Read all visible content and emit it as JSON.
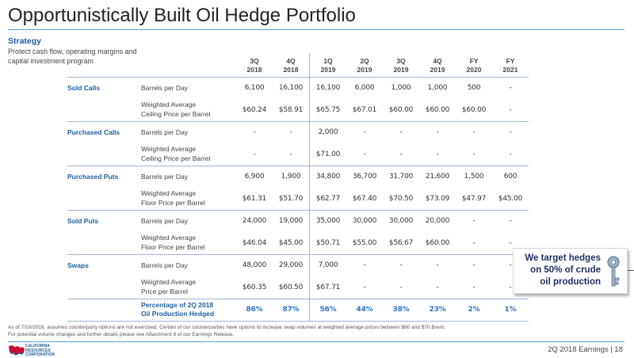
{
  "page": {
    "title": "Opportunistically Built Oil Hedge Portfolio",
    "strategy_heading": "Strategy",
    "strategy_text": "Protect cash flow, operating margins and capital investment program"
  },
  "table": {
    "columns": [
      {
        "line1": "3Q",
        "line2": "2018"
      },
      {
        "line1": "4Q",
        "line2": "2018"
      },
      {
        "line1": "1Q",
        "line2": "2019"
      },
      {
        "line1": "2Q",
        "line2": "2019"
      },
      {
        "line1": "3Q",
        "line2": "2019"
      },
      {
        "line1": "4Q",
        "line2": "2019"
      },
      {
        "line1": "FY",
        "line2": "2020"
      },
      {
        "line1": "FY",
        "line2": "2021"
      }
    ],
    "groups": [
      {
        "category": "Sold Calls",
        "rows": [
          {
            "desc": [
              "Barrels per Day"
            ],
            "values": [
              "6,100",
              "16,100",
              "16,100",
              "6,000",
              "1,000",
              "1,000",
              "500",
              "-"
            ]
          },
          {
            "desc": [
              "Weighted Average",
              "Ceiling Price per Barrel"
            ],
            "values": [
              "$60.24",
              "$58.91",
              "$65.75",
              "$67.01",
              "$60.00",
              "$60.00",
              "$60.00",
              "-"
            ]
          }
        ]
      },
      {
        "category": "Purchased Calls",
        "rows": [
          {
            "desc": [
              "Barrels per Day"
            ],
            "values": [
              "-",
              "-",
              "2,000",
              "-",
              "-",
              "-",
              "-",
              "-"
            ]
          },
          {
            "desc": [
              "Weighted Average",
              "Ceiling Price per Barrel"
            ],
            "values": [
              "-",
              "-",
              "$71.00",
              "-",
              "-",
              "-",
              "-",
              "-"
            ]
          }
        ]
      },
      {
        "category": "Purchased Puts",
        "rows": [
          {
            "desc": [
              "Barrels per Day"
            ],
            "values": [
              "6,900",
              "1,900",
              "34,800",
              "36,700",
              "31,700",
              "21,600",
              "1,500",
              "600"
            ]
          },
          {
            "desc": [
              "Weighted Average",
              "Floor Price per Barrel"
            ],
            "values": [
              "$61.31",
              "$51.70",
              "$62.77",
              "$67.40",
              "$70.50",
              "$73.09",
              "$47.97",
              "$45.00"
            ]
          }
        ]
      },
      {
        "category": "Sold Puts",
        "rows": [
          {
            "desc": [
              "Barrels per Day"
            ],
            "values": [
              "24,000",
              "19,000",
              "35,000",
              "30,000",
              "30,000",
              "20,000",
              "-",
              "-"
            ]
          },
          {
            "desc": [
              "Weighted Average",
              "Floor Price per Barrel"
            ],
            "values": [
              "$46.04",
              "$45.00",
              "$50.71",
              "$55.00",
              "$56.67",
              "$60.00",
              "-",
              "-"
            ]
          }
        ]
      },
      {
        "category": "Swaps",
        "rows": [
          {
            "desc": [
              "Barrels per Day"
            ],
            "values": [
              "48,000",
              "29,000",
              "7,000",
              "-",
              "-",
              "-",
              "-",
              "-"
            ]
          },
          {
            "desc": [
              "Weighted Average",
              "Price per Barrel"
            ],
            "values": [
              "$60.35",
              "$60.50",
              "$67.71",
              "-",
              "-",
              "-",
              "-",
              "-"
            ]
          }
        ]
      }
    ],
    "percentage": {
      "label": [
        "Percentage of 2Q 2018",
        "Oil Production Hedged"
      ],
      "values": [
        "86%",
        "87%",
        "56%",
        "44%",
        "38%",
        "23%",
        "2%",
        "1%"
      ]
    }
  },
  "callout": {
    "text": [
      "We target hedges",
      "on 50% of crude",
      "oil production"
    ],
    "icon": "key-icon"
  },
  "footnote": "As of 7/10/2018, assumes counterparty options are not exercised. Certain of our counterparties have options to increase swap volumes at weighted average prices between $60 and $70 Brent. For potential volume changes and further details please see Attachment 8 of our Earnings Release.",
  "footer": {
    "logo_lines": [
      "CALIFORNIA",
      "RESOURCES",
      "CORPORATION"
    ],
    "page_label": "2Q 2018 Earnings  |  18"
  },
  "colors": {
    "accent_blue": "#1f5d9c",
    "percent_blue": "#2e75c5",
    "rule_blue": "#5b9bd5",
    "logo_red": "#c8102e"
  }
}
